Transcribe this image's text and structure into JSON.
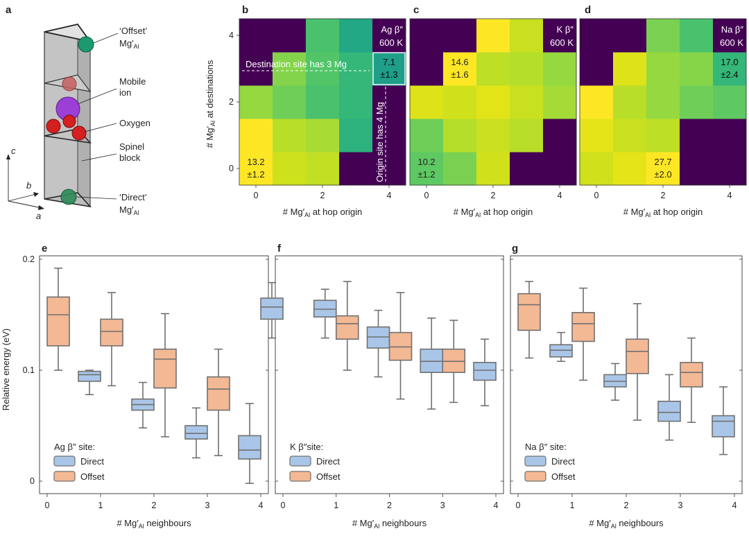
{
  "panel_letters": [
    "a",
    "b",
    "c",
    "d",
    "e",
    "f",
    "g"
  ],
  "panel_a": {
    "axes": {
      "c": "c",
      "b": "b",
      "a": "a"
    },
    "labels": [
      {
        "name": "offset-label",
        "lines": [
          "‘Offset’",
          "Mg′",
          "Al"
        ]
      },
      {
        "name": "mobile-ion-label",
        "lines": [
          "Mobile",
          "ion"
        ]
      },
      {
        "name": "oxygen-label",
        "lines": [
          "Oxygen"
        ]
      },
      {
        "name": "spinel-block-label",
        "lines": [
          "Spinel",
          "block"
        ]
      },
      {
        "name": "direct-label",
        "lines": [
          "‘Direct’",
          "Mg′",
          "Al"
        ]
      }
    ],
    "colors": {
      "offset_ion": "#1a9a6e",
      "direct_ion": "#2e8b57",
      "mobile_ion": "#9b3fd6",
      "oxygen": "#d42020",
      "prism": "#cfcfcf"
    }
  },
  "heatmap_axes": {
    "y_label_main": "# Mg′",
    "y_label_sub": "Al",
    "y_label_tail": " at destinations",
    "x_label_main": "# Mg′",
    "x_label_sub": "Al",
    "x_label_tail": " at hop origin",
    "x_ticks": [
      "0",
      "2",
      "4"
    ],
    "y_ticks": [
      "0",
      "2",
      "4"
    ]
  },
  "box_axes": {
    "y_label": "Relative energy (eV)",
    "y_ticks": [
      "0",
      "0.1",
      "0.2"
    ],
    "x_ticks": [
      "0",
      "1",
      "2",
      "3",
      "4"
    ],
    "x_label_main": "# Mg′",
    "x_label_sub": "Al",
    "x_label_tail": " neighbours"
  },
  "chart_data": [
    {
      "panel": "b",
      "type": "heatmap",
      "title_lines": [
        "Ag β″",
        "600 K"
      ],
      "xlabel": "# Mg′Al at hop origin",
      "ylabel": "# Mg′Al at destinations",
      "grid": [
        [
          "#fde725",
          "#cde11d",
          "#c2df23",
          "#440154",
          "#440154"
        ],
        [
          "#fde725",
          "#b8de29",
          "#a8db34",
          "#2db27d",
          "#440154"
        ],
        [
          "#95d840",
          "#6ece58",
          "#4ac16d",
          "#35b779",
          "#440154"
        ],
        [
          "#440154",
          "#84d44b",
          "#52c569",
          "#35b779",
          "#1f9e89"
        ],
        [
          "#440154",
          "#440154",
          "#4ac16d",
          "#22a884",
          "#440154"
        ]
      ],
      "cell_labels": [
        {
          "x": 0,
          "y": 0,
          "lines": [
            "13.2",
            "±1.2"
          ]
        },
        {
          "x": 4,
          "y": 3,
          "lines": [
            "7.1",
            "±1.3"
          ],
          "highlight": true
        }
      ],
      "annotations": [
        {
          "name": "destination-annotation",
          "text": "Destination site has 3 Mg"
        },
        {
          "name": "origin-annotation",
          "text": "Origin site has 4 Mg"
        }
      ]
    },
    {
      "panel": "c",
      "type": "heatmap",
      "title_lines": [
        "K β″",
        "600 K"
      ],
      "xlabel": "# Mg′Al at hop origin",
      "ylabel": "",
      "grid": [
        [
          "#5ec962",
          "#7ad151",
          "#d0e11c",
          "#440154",
          "#440154"
        ],
        [
          "#6ece58",
          "#b5de2b",
          "#c8e020",
          "#b8de29",
          "#440154"
        ],
        [
          "#dde318",
          "#d0e11c",
          "#e2e418",
          "#c8e020",
          "#a5db36"
        ],
        [
          "#440154",
          "#fde725",
          "#bddf26",
          "#b5de2b",
          "#95d840"
        ],
        [
          "#440154",
          "#440154",
          "#fde725",
          "#c8e020",
          "#440154"
        ]
      ],
      "cell_labels": [
        {
          "x": 0,
          "y": 0,
          "lines": [
            "10.2",
            "±1.2"
          ]
        },
        {
          "x": 1,
          "y": 3,
          "lines": [
            "14.6",
            "±1.6"
          ]
        }
      ]
    },
    {
      "panel": "d",
      "type": "heatmap",
      "title_lines": [
        "Na β″",
        "600 K"
      ],
      "xlabel": "# Mg′Al at hop origin",
      "ylabel": "",
      "grid": [
        [
          "#d0e11c",
          "#e5e419",
          "#fde725",
          "#440154",
          "#440154"
        ],
        [
          "#e5e419",
          "#c8e020",
          "#bddf26",
          "#440154",
          "#440154"
        ],
        [
          "#fde725",
          "#b8de29",
          "#95d840",
          "#6ece58",
          "#5ec962"
        ],
        [
          "#440154",
          "#dde318",
          "#95d840",
          "#86d549",
          "#35b779"
        ],
        [
          "#440154",
          "#440154",
          "#7ad151",
          "#4ac16d",
          "#440154"
        ]
      ],
      "cell_labels": [
        {
          "x": 2,
          "y": 0,
          "lines": [
            "27.7",
            "±2.0"
          ]
        },
        {
          "x": 4,
          "y": 3,
          "lines": [
            "17.0",
            "±2.4"
          ]
        }
      ]
    },
    {
      "panel": "e",
      "type": "box",
      "ylabel": "Relative energy (eV)",
      "xlabel": "# Mg′Al neighbours",
      "ylim": [
        0,
        0.2
      ],
      "legend_title": "Ag β″ site:",
      "series": [
        {
          "name": "Direct",
          "boxes": [
            {
              "x": 1,
              "min": 0.078,
              "q1": 0.09,
              "median": 0.096,
              "q3": 0.099,
              "max": 0.1
            },
            {
              "x": 2,
              "min": 0.048,
              "q1": 0.064,
              "median": 0.069,
              "q3": 0.074,
              "max": 0.089
            },
            {
              "x": 3,
              "min": 0.021,
              "q1": 0.038,
              "median": 0.043,
              "q3": 0.05,
              "max": 0.066
            },
            {
              "x": 4,
              "min": -0.002,
              "q1": 0.02,
              "median": 0.028,
              "q3": 0.041,
              "max": 0.07
            }
          ]
        },
        {
          "name": "Offset",
          "boxes": [
            {
              "x": 0,
              "min": 0.1,
              "q1": 0.122,
              "median": 0.15,
              "q3": 0.166,
              "max": 0.192
            },
            {
              "x": 1,
              "min": 0.086,
              "q1": 0.122,
              "median": 0.135,
              "q3": 0.146,
              "max": 0.17
            },
            {
              "x": 2,
              "min": 0.04,
              "q1": 0.084,
              "median": 0.11,
              "q3": 0.119,
              "max": 0.151
            },
            {
              "x": 3,
              "min": 0.023,
              "q1": 0.064,
              "median": 0.083,
              "q3": 0.094,
              "max": 0.119
            }
          ]
        }
      ]
    },
    {
      "panel": "f",
      "type": "box",
      "ylabel": "",
      "xlabel": "# Mg′Al neighbours",
      "ylim": [
        0,
        0.2
      ],
      "legend_title": "K β″site:",
      "series": [
        {
          "name": "Direct",
          "boxes": [
            {
              "x": 0,
              "min": 0.129,
              "q1": 0.146,
              "median": 0.157,
              "q3": 0.165,
              "max": 0.179
            },
            {
              "x": 1,
              "min": 0.129,
              "q1": 0.148,
              "median": 0.155,
              "q3": 0.163,
              "max": 0.173
            },
            {
              "x": 2,
              "min": 0.094,
              "q1": 0.12,
              "median": 0.13,
              "q3": 0.139,
              "max": 0.154
            },
            {
              "x": 3,
              "min": 0.065,
              "q1": 0.098,
              "median": 0.108,
              "q3": 0.119,
              "max": 0.147
            },
            {
              "x": 4,
              "min": 0.068,
              "q1": 0.091,
              "median": 0.1,
              "q3": 0.107,
              "max": 0.128
            }
          ]
        },
        {
          "name": "Offset",
          "boxes": [
            {
              "x": 1,
              "min": 0.1,
              "q1": 0.128,
              "median": 0.142,
              "q3": 0.149,
              "max": 0.18
            },
            {
              "x": 2,
              "min": 0.074,
              "q1": 0.109,
              "median": 0.121,
              "q3": 0.134,
              "max": 0.17
            },
            {
              "x": 3,
              "min": 0.071,
              "q1": 0.098,
              "median": 0.108,
              "q3": 0.119,
              "max": 0.145
            }
          ]
        }
      ]
    },
    {
      "panel": "g",
      "type": "box",
      "ylabel": "",
      "xlabel": "# Mg′Al neighbours",
      "ylim": [
        0,
        0.2
      ],
      "legend_title": "Na β″ site:",
      "series": [
        {
          "name": "Direct",
          "boxes": [
            {
              "x": 1,
              "min": 0.108,
              "q1": 0.112,
              "median": 0.118,
              "q3": 0.123,
              "max": 0.134
            },
            {
              "x": 2,
              "min": 0.073,
              "q1": 0.085,
              "median": 0.09,
              "q3": 0.096,
              "max": 0.106
            },
            {
              "x": 3,
              "min": 0.037,
              "q1": 0.054,
              "median": 0.062,
              "q3": 0.072,
              "max": 0.096
            },
            {
              "x": 4,
              "min": 0.024,
              "q1": 0.04,
              "median": 0.054,
              "q3": 0.059,
              "max": 0.085
            }
          ]
        },
        {
          "name": "Offset",
          "boxes": [
            {
              "x": 0,
              "min": 0.111,
              "q1": 0.136,
              "median": 0.159,
              "q3": 0.169,
              "max": 0.18
            },
            {
              "x": 1,
              "min": 0.091,
              "q1": 0.126,
              "median": 0.142,
              "q3": 0.152,
              "max": 0.174
            },
            {
              "x": 2,
              "min": 0.055,
              "q1": 0.097,
              "median": 0.117,
              "q3": 0.128,
              "max": 0.16
            },
            {
              "x": 3,
              "min": 0.053,
              "q1": 0.085,
              "median": 0.098,
              "q3": 0.107,
              "max": 0.129
            }
          ]
        }
      ]
    }
  ],
  "legend_colors": {
    "Direct": "#a9c6e8",
    "Offset": "#f3b894",
    "box_stroke": "#707070"
  }
}
